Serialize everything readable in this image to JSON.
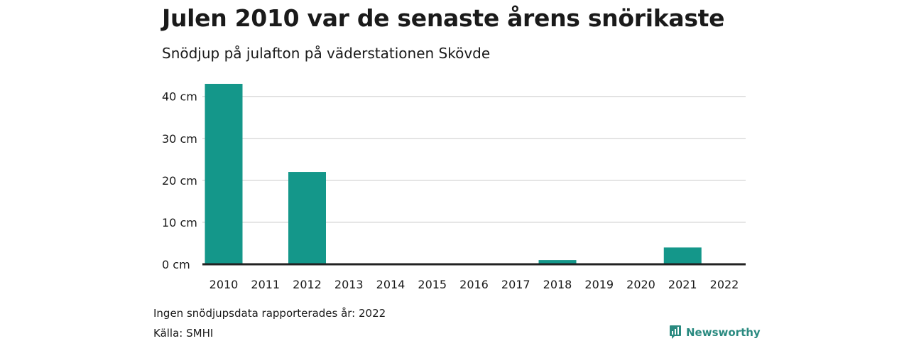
{
  "header": {
    "title": "Julen 2010 var de senaste årens snörikaste",
    "subtitle": "Snödjup på julafton på väderstationen Skövde"
  },
  "footer": {
    "note": "Ingen snödjupsdata rapporterades år: 2022",
    "source": "Källa: SMHI",
    "brand": "Newsworthy",
    "brand_icon": "bar-chart-speech-bubble-icon"
  },
  "colors": {
    "bar": "#14978a",
    "grid": "#dcdcdc",
    "axis": "#222222",
    "brand": "#2a8a80"
  },
  "chart_data": {
    "type": "bar",
    "title": "Julen 2010 var de senaste årens snörikaste",
    "subtitle": "Snödjup på julafton på väderstationen Skövde",
    "categories": [
      "2010",
      "2011",
      "2012",
      "2013",
      "2014",
      "2015",
      "2016",
      "2017",
      "2018",
      "2019",
      "2020",
      "2021",
      "2022"
    ],
    "values": [
      43,
      0,
      22,
      0,
      0,
      0,
      0,
      0,
      1,
      0,
      0,
      4,
      null
    ],
    "yticks": [
      0,
      10,
      20,
      30,
      40
    ],
    "ytick_labels": [
      "0 cm",
      "10 cm",
      "20 cm",
      "30 cm",
      "40 cm"
    ],
    "ylim": [
      0,
      43
    ],
    "xlabel": "",
    "ylabel": "",
    "grid": true,
    "legend": "none"
  }
}
